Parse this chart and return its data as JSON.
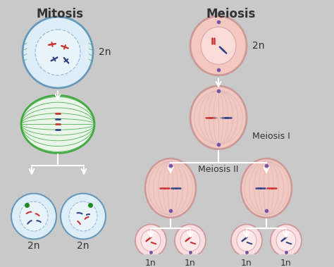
{
  "bg_color": "#c9c9c9",
  "title_mitosis": "Mitosis",
  "title_meiosis": "Meiosis",
  "label_meiosis1": "Meiosis I",
  "label_meiosis2": "Meiosis II",
  "label_2n": "2n",
  "label_1n": "1n",
  "cell_blue_fill": "#ddeef8",
  "cell_blue_border": "#6699bb",
  "cell_white_fill": "#f0f8ff",
  "cell_pink_outer_fill": "#f2c8c0",
  "cell_pink_outer_border": "#cc9999",
  "cell_pink_inner_fill": "#f9dcd8",
  "cell_pink_inner_border": "#ddaaaa",
  "arrow_color": "#ffffff",
  "text_color": "#333333",
  "spindle_green": "#44aa44",
  "spindle_pink": "#ccbbbb",
  "chrom_red": "#cc3333",
  "chrom_blue": "#334488",
  "chrom_green": "#228822",
  "dot_purple": "#7755aa",
  "inner_dashed_color": "#99bbdd",
  "inner_dashed_pink": "#ddaabb"
}
